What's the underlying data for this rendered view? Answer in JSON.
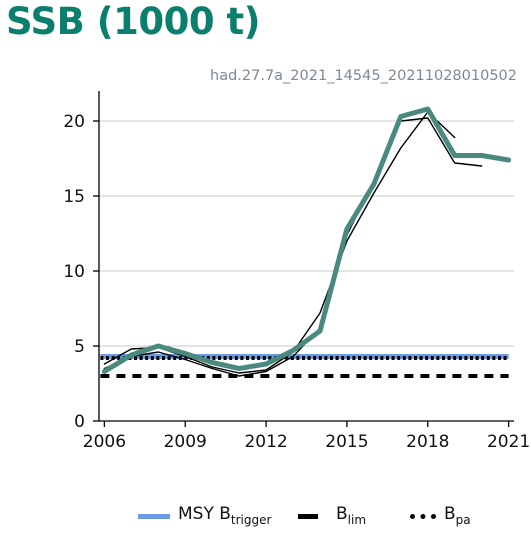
{
  "title": "SSB (1000 t)",
  "subtitle": "had.27.7a_2021_14545_20211028010502",
  "chart_data": {
    "type": "line",
    "title": "SSB (1000 t)",
    "xlim": [
      2005.8,
      2021.2
    ],
    "ylim": [
      0,
      22
    ],
    "x_ticks": [
      2006,
      2009,
      2012,
      2015,
      2018,
      2021
    ],
    "x_tick_labels": [
      "2006",
      "2009",
      "2012",
      "2015",
      "2018",
      "2021"
    ],
    "y_ticks": [
      0,
      5,
      10,
      15,
      20
    ],
    "y_tick_labels": [
      "0",
      "5",
      "10",
      "15",
      "20"
    ],
    "grid": "horizontal",
    "series": [
      {
        "kind": "retrospective",
        "color": "#000000",
        "x": [
          2006,
          2007,
          2008,
          2009,
          2010,
          2011,
          2012,
          2013,
          2014,
          2015,
          2016,
          2017,
          2018,
          2019
        ],
        "values": [
          3.8,
          4.8,
          4.9,
          4.3,
          3.6,
          3.2,
          3.4,
          4.6,
          7.2,
          12.0,
          15.2,
          18.2,
          20.6,
          18.9
        ]
      },
      {
        "kind": "retrospective",
        "color": "#000000",
        "x": [
          2006,
          2007,
          2008,
          2009,
          2010,
          2011,
          2012,
          2013,
          2014,
          2015,
          2016,
          2017,
          2018,
          2019,
          2020
        ],
        "values": [
          3.5,
          4.3,
          4.6,
          4.1,
          3.5,
          3.0,
          3.3,
          4.3,
          6.2,
          12.4,
          16.0,
          20.0,
          20.2,
          17.2,
          17.0
        ]
      },
      {
        "kind": "assessment",
        "color": "#4a8a7e",
        "x": [
          2006,
          2007,
          2008,
          2009,
          2010,
          2011,
          2012,
          2013,
          2014,
          2015,
          2016,
          2017,
          2018,
          2019,
          2020,
          2021
        ],
        "values": [
          3.3,
          4.4,
          5.0,
          4.5,
          3.9,
          3.5,
          3.8,
          4.7,
          6.0,
          12.8,
          15.8,
          20.3,
          20.8,
          17.7,
          17.7,
          17.4
        ]
      }
    ],
    "reference_lines": [
      {
        "name": "MSY B trigger",
        "value": 4.3,
        "color": "#6a9de6",
        "style": "solid"
      },
      {
        "name": "B lim",
        "value": 3.0,
        "color": "#000000",
        "style": "dashed"
      },
      {
        "name": "B pa",
        "value": 4.2,
        "color": "#000000",
        "style": "dotted"
      }
    ],
    "legend": {
      "placement": "bottom",
      "items": [
        {
          "main": "MSY B",
          "sub": "trigger",
          "style": "solid",
          "color": "#6a9de6"
        },
        {
          "main": "B",
          "sub": "lim",
          "style": "dashed",
          "color": "#000000"
        },
        {
          "main": "B",
          "sub": "pa",
          "style": "dotted",
          "color": "#000000"
        }
      ]
    }
  }
}
